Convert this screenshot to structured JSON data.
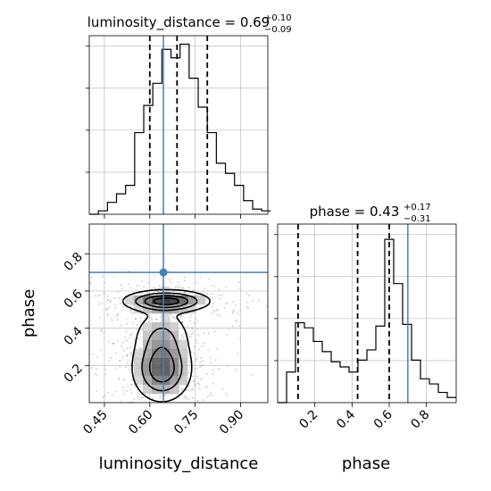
{
  "chart_data": [
    {
      "type": "histogram",
      "panel": "luminosity_distance marginal",
      "title_param": "luminosity_distance",
      "title_value": "0.69",
      "title_plus": "+0.10",
      "title_minus": "−0.09",
      "x_range": [
        0.4,
        0.99
      ],
      "bin_edges": [
        0.4,
        0.43,
        0.46,
        0.49,
        0.52,
        0.55,
        0.58,
        0.61,
        0.64,
        0.67,
        0.7,
        0.73,
        0.76,
        0.79,
        0.82,
        0.85,
        0.88,
        0.91,
        0.94,
        0.97
      ],
      "bin_heights": [
        0.0,
        0.02,
        0.07,
        0.12,
        0.17,
        0.48,
        0.64,
        0.77,
        0.97,
        0.92,
        1.0,
        0.8,
        0.63,
        0.48,
        0.3,
        0.24,
        0.17,
        0.08,
        0.03,
        0.02
      ],
      "quantiles": [
        0.6,
        0.69,
        0.79
      ],
      "truth": 0.645,
      "grid": true
    },
    {
      "type": "histogram",
      "panel": "phase marginal",
      "title_param": "phase",
      "title_value": "0.43",
      "title_plus": "+0.17",
      "title_minus": "−0.31",
      "x_range": [
        0.0,
        0.96
      ],
      "bin_edges": [
        0.0,
        0.048,
        0.096,
        0.144,
        0.192,
        0.24,
        0.288,
        0.336,
        0.384,
        0.432,
        0.48,
        0.528,
        0.576,
        0.624,
        0.672,
        0.72,
        0.768,
        0.816,
        0.864,
        0.912
      ],
      "bin_heights": [
        0.0,
        0.18,
        0.47,
        0.44,
        0.36,
        0.3,
        0.24,
        0.21,
        0.18,
        0.25,
        0.31,
        0.45,
        0.96,
        0.7,
        0.46,
        0.25,
        0.14,
        0.11,
        0.06,
        0.03
      ],
      "quantiles": [
        0.11,
        0.43,
        0.6
      ],
      "truth": 0.7,
      "xticks": [
        "0.2",
        "0.4",
        "0.6",
        "0.8"
      ],
      "xtick_values": [
        0.2,
        0.4,
        0.6,
        0.8
      ],
      "xlabel": "phase",
      "grid": true
    },
    {
      "type": "scatter",
      "panel": "2D posterior",
      "x_range": [
        0.4,
        0.99
      ],
      "y_range": [
        0.0,
        0.96
      ],
      "xticks": [
        "0.45",
        "0.60",
        "0.75",
        "0.90"
      ],
      "xtick_values": [
        0.45,
        0.6,
        0.75,
        0.9
      ],
      "yticks": [
        "0.2",
        "0.4",
        "0.6",
        "0.8"
      ],
      "ytick_values": [
        0.2,
        0.4,
        0.6,
        0.8
      ],
      "xlabel": "luminosity_distance",
      "ylabel": "phase",
      "truth": [
        0.645,
        0.7
      ],
      "density_blobs": [
        {
          "x": 0.655,
          "y": 0.545,
          "sx": 0.07,
          "sy": 0.03,
          "w": 1.0
        },
        {
          "x": 0.64,
          "y": 0.18,
          "sx": 0.05,
          "sy": 0.09,
          "w": 0.8
        },
        {
          "x": 0.64,
          "y": 0.36,
          "sx": 0.05,
          "sy": 0.08,
          "w": 0.35
        }
      ],
      "grid": true
    }
  ],
  "colors": {
    "truth": "#4682b4",
    "hist": "#000000",
    "grid": "#b0b0b0",
    "scatter": "#9e9e9e"
  }
}
